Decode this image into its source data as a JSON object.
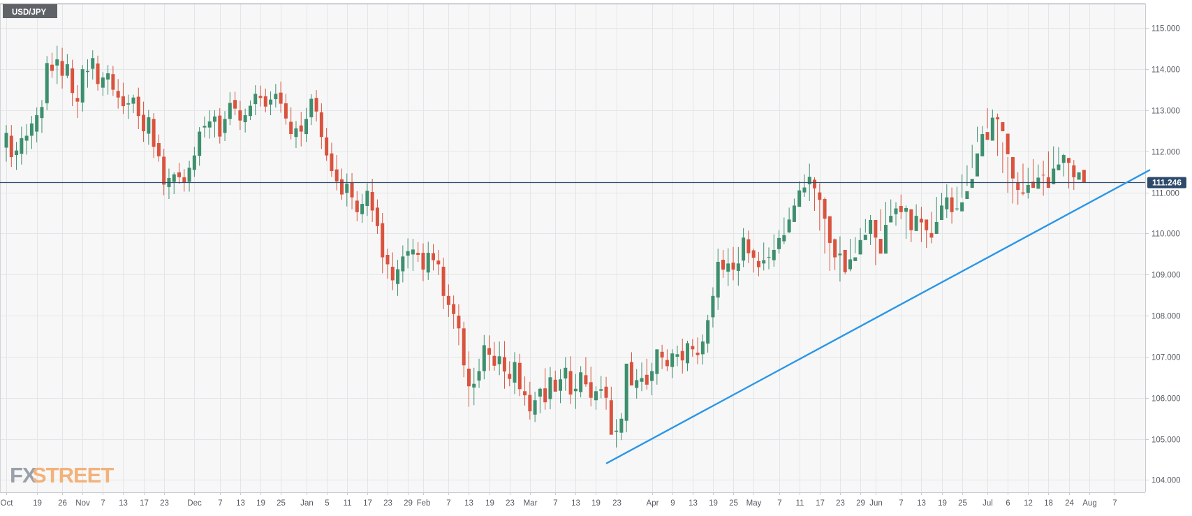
{
  "chart_data": {
    "type": "candlestick",
    "title": "USD/JPY",
    "watermark": "FXSTREET",
    "ylim": [
      103.7,
      115.6
    ],
    "y_ticks": [
      "115.000",
      "114.000",
      "113.000",
      "112.000",
      "111.000",
      "110.000",
      "109.000",
      "108.000",
      "107.000",
      "106.000",
      "105.000",
      "104.000"
    ],
    "y_tick_values": [
      115,
      114,
      113,
      112,
      111,
      110,
      109,
      108,
      107,
      106,
      105,
      104
    ],
    "x_ticks": [
      {
        "label": "Oct",
        "idx": 0
      },
      {
        "label": "19",
        "idx": 6
      },
      {
        "label": "26",
        "idx": 11
      },
      {
        "label": "Nov",
        "idx": 15
      },
      {
        "label": "7",
        "idx": 19
      },
      {
        "label": "13",
        "idx": 23
      },
      {
        "label": "17",
        "idx": 27
      },
      {
        "label": "23",
        "idx": 31
      },
      {
        "label": "Dec",
        "idx": 37
      },
      {
        "label": "7",
        "idx": 42
      },
      {
        "label": "13",
        "idx": 46
      },
      {
        "label": "19",
        "idx": 50
      },
      {
        "label": "25",
        "idx": 54
      },
      {
        "label": "Jan",
        "idx": 59
      },
      {
        "label": "5",
        "idx": 63
      },
      {
        "label": "11",
        "idx": 67
      },
      {
        "label": "17",
        "idx": 71
      },
      {
        "label": "23",
        "idx": 75
      },
      {
        "label": "29",
        "idx": 79
      },
      {
        "label": "Feb",
        "idx": 82
      },
      {
        "label": "7",
        "idx": 87
      },
      {
        "label": "13",
        "idx": 91
      },
      {
        "label": "19",
        "idx": 95
      },
      {
        "label": "23",
        "idx": 99
      },
      {
        "label": "Mar",
        "idx": 103
      },
      {
        "label": "7",
        "idx": 108
      },
      {
        "label": "13",
        "idx": 112
      },
      {
        "label": "19",
        "idx": 116
      },
      {
        "label": "23",
        "idx": 120
      },
      {
        "label": "Apr",
        "idx": 127
      },
      {
        "label": "9",
        "idx": 131
      },
      {
        "label": "13",
        "idx": 135
      },
      {
        "label": "19",
        "idx": 139
      },
      {
        "label": "25",
        "idx": 143
      },
      {
        "label": "May",
        "idx": 147
      },
      {
        "label": "7",
        "idx": 152
      },
      {
        "label": "11",
        "idx": 156
      },
      {
        "label": "17",
        "idx": 160
      },
      {
        "label": "23",
        "idx": 164
      },
      {
        "label": "29",
        "idx": 168
      },
      {
        "label": "Jun",
        "idx": 171
      },
      {
        "label": "7",
        "idx": 176
      },
      {
        "label": "13",
        "idx": 180
      },
      {
        "label": "19",
        "idx": 184
      },
      {
        "label": "25",
        "idx": 188
      },
      {
        "label": "Jul",
        "idx": 193
      },
      {
        "label": "6",
        "idx": 197
      },
      {
        "label": "12",
        "idx": 201
      },
      {
        "label": "18",
        "idx": 205
      },
      {
        "label": "24",
        "idx": 209
      },
      {
        "label": "Aug",
        "idx": 213
      },
      {
        "label": "7",
        "idx": 218
      }
    ],
    "current_price": "111.246",
    "current_value": 111.246,
    "trendline": {
      "from": {
        "idx": 118,
        "price": 104.4
      },
      "to": {
        "idx": 225,
        "price": 111.55
      }
    },
    "colors": {
      "up": "#3d8f6e",
      "down": "#d9533e",
      "price_line": "#2e4a6b",
      "trendline": "#2a96e8",
      "price_label_bg": "#2e4a6b",
      "title_bg": "#5f6368",
      "watermark_fx": "#9aa0aa",
      "watermark_street": "#f2b27a"
    },
    "closes": [
      112.45,
      111.86,
      112.02,
      112.32,
      112.38,
      112.68,
      112.88,
      113.08,
      114.15,
      113.96,
      114.24,
      113.84,
      114.12,
      113.42,
      113.21,
      114.0,
      113.96,
      114.27,
      113.64,
      113.8,
      113.9,
      113.5,
      113.31,
      113.1,
      113.17,
      113.31,
      112.86,
      112.49,
      112.83,
      112.11,
      111.88,
      111.19,
      111.35,
      111.44,
      111.37,
      111.24,
      111.6,
      111.9,
      112.48,
      112.62,
      112.73,
      112.85,
      112.36,
      112.79,
      113.18,
      113.04,
      112.75,
      112.88,
      113.11,
      113.4,
      113.3,
      113.09,
      113.26,
      113.4,
      113.16,
      112.8,
      112.42,
      112.56,
      112.48,
      112.79,
      113.28,
      112.97,
      112.35,
      111.9,
      111.52,
      111.27,
      110.95,
      111.21,
      110.88,
      110.52,
      110.72,
      111.04,
      110.56,
      110.18,
      109.42,
      109.25,
      108.86,
      109.13,
      109.44,
      109.57,
      109.61,
      109.48,
      109.12,
      109.53,
      109.35,
      109.25,
      108.48,
      108.26,
      108.04,
      107.69,
      106.79,
      106.28,
      106.34,
      106.65,
      107.28,
      107.05,
      106.78,
      107.01,
      106.64,
      106.46,
      106.87,
      106.21,
      106.06,
      105.67,
      105.94,
      106.22,
      105.89,
      106.5,
      106.15,
      106.45,
      106.73,
      106.08,
      106.22,
      106.62,
      106.33,
      106.0,
      106.16,
      106.21,
      106.0,
      105.1,
      105.2,
      105.49,
      106.83,
      106.3,
      106.43,
      106.48,
      106.32,
      106.65,
      107.18,
      106.98,
      106.77,
      107.08,
      107.06,
      106.91,
      107.33,
      107.18,
      107.04,
      107.37,
      107.89,
      108.48,
      109.31,
      109.12,
      109.27,
      109.12,
      109.27,
      109.9,
      109.52,
      109.41,
      109.18,
      109.35,
      109.43,
      109.6,
      109.89,
      109.96,
      110.34,
      110.68,
      111.05,
      111.12,
      111.38,
      111.1,
      110.82,
      110.36,
      109.77,
      109.42,
      109.51,
      109.06,
      109.37,
      109.42,
      109.84,
      109.97,
      110.33,
      109.9,
      109.51,
      110.21,
      110.43,
      110.61,
      110.52,
      110.62,
      110.08,
      110.43,
      110.27,
      110.08,
      109.9,
      110.28,
      110.68,
      110.88,
      110.52,
      110.61,
      110.76,
      111.03,
      111.33,
      111.95,
      112.42,
      112.28,
      112.82,
      112.78,
      112.49,
      111.93,
      111.34,
      111.06,
      110.97,
      111.18,
      111.11,
      111.36,
      111.42,
      111.11,
      111.58,
      111.68,
      111.91,
      111.72,
      111.37,
      111.49,
      111.25
    ],
    "opens": [
      112.09,
      112.38,
      111.91,
      111.94,
      112.26,
      112.38,
      112.48,
      112.81,
      113.17,
      114.11,
      114.09,
      114.2,
      113.84,
      114.02,
      113.3,
      113.19,
      113.93,
      114.01,
      114.14,
      113.55,
      113.75,
      113.88,
      113.47,
      113.34,
      113.14,
      113.16,
      113.33,
      112.89,
      112.43,
      112.79,
      112.2,
      111.87,
      111.13,
      111.26,
      111.49,
      111.37,
      111.26,
      111.55,
      111.89,
      112.58,
      112.58,
      112.72,
      112.87,
      112.45,
      112.79,
      113.25,
      113.0,
      112.71,
      112.86,
      113.15,
      113.35,
      113.34,
      113.14,
      113.27,
      113.43,
      113.17,
      112.72,
      112.35,
      112.63,
      112.42,
      112.83,
      113.3,
      112.95,
      112.34,
      111.95,
      111.56,
      111.32,
      110.99,
      111.24,
      110.8,
      110.47,
      110.67,
      111.01,
      110.63,
      110.25,
      109.48,
      109.19,
      108.77,
      109.08,
      109.46,
      109.49,
      109.53,
      109.53,
      109.05,
      109.52,
      109.34,
      109.19,
      108.48,
      108.28,
      108.0,
      107.69,
      106.71,
      106.25,
      106.42,
      106.65,
      107.21,
      107.02,
      106.82,
      106.99,
      106.58,
      106.37,
      106.85,
      106.16,
      106.07,
      105.59,
      106.03,
      106.23,
      105.97,
      106.44,
      106.17,
      106.47,
      106.65,
      106.16,
      106.14,
      106.55,
      106.38,
      105.94,
      106.17,
      106.27,
      105.94,
      105.17,
      105.15,
      105.44,
      106.87,
      106.24,
      106.39,
      106.56,
      106.41,
      106.58,
      107.12,
      106.92,
      106.75,
      107.0,
      107.14,
      106.84,
      107.26,
      107.1,
      107.06,
      107.32,
      107.96,
      108.44,
      109.36,
      109.07,
      109.29,
      109.09,
      109.34,
      109.86,
      109.59,
      109.33,
      109.27,
      109.42,
      109.35,
      109.62,
      109.81,
      110.03,
      110.28,
      110.65,
      111.0,
      111.2,
      111.31,
      111.0,
      110.84,
      110.42,
      109.86,
      109.47,
      109.6,
      109.13,
      109.33,
      109.49,
      109.84,
      109.99,
      110.33,
      109.87,
      109.51,
      110.27,
      110.47,
      110.67,
      110.53,
      110.59,
      110.06,
      110.36,
      110.34,
      110.01,
      109.99,
      110.33,
      110.59,
      110.88,
      110.59,
      110.54,
      110.84,
      111.11,
      111.39,
      111.88,
      112.47,
      112.26,
      112.83,
      112.71,
      112.43,
      111.86,
      111.25,
      111.0,
      110.99,
      111.26,
      111.09,
      111.43,
      111.37,
      111.2,
      111.54,
      111.72,
      111.84,
      111.66,
      111.31,
      111.55
    ],
    "highs": [
      112.64,
      112.64,
      112.23,
      112.6,
      112.66,
      112.86,
      113.07,
      113.25,
      114.32,
      114.4,
      114.57,
      114.52,
      114.37,
      114.23,
      113.61,
      114.1,
      114.24,
      114.46,
      114.33,
      113.93,
      114.1,
      114.08,
      113.76,
      113.67,
      113.38,
      113.38,
      113.55,
      113.21,
      113.01,
      112.93,
      112.41,
      112.06,
      111.58,
      111.49,
      111.72,
      111.57,
      111.77,
      112.11,
      112.59,
      112.85,
      113.0,
      113.0,
      113.05,
      112.98,
      113.44,
      113.45,
      113.23,
      113.04,
      113.24,
      113.61,
      113.6,
      113.53,
      113.46,
      113.64,
      113.7,
      113.4,
      113.07,
      112.74,
      112.96,
      113.06,
      113.39,
      113.49,
      113.17,
      112.57,
      112.21,
      111.91,
      111.58,
      111.46,
      111.47,
      111.03,
      110.96,
      111.22,
      111.33,
      110.83,
      110.5,
      109.63,
      109.54,
      109.36,
      109.71,
      109.88,
      109.87,
      109.79,
      109.76,
      109.8,
      109.74,
      109.6,
      109.41,
      108.76,
      108.49,
      108.28,
      107.85,
      107.13,
      106.73,
      106.95,
      107.53,
      107.52,
      107.36,
      107.37,
      107.38,
      106.89,
      107.11,
      107.07,
      106.52,
      106.39,
      106.15,
      106.25,
      106.72,
      106.75,
      106.66,
      106.7,
      106.99,
      107.01,
      106.58,
      106.77,
      106.99,
      106.76,
      106.28,
      106.53,
      106.51,
      106.27,
      105.48,
      105.63,
      106.15,
      107.11,
      106.7,
      106.86,
      106.95,
      106.85,
      107.16,
      107.29,
      107.18,
      107.18,
      107.27,
      107.44,
      107.39,
      107.43,
      107.47,
      107.54,
      108.02,
      108.69,
      109.63,
      109.6,
      109.64,
      109.67,
      109.67,
      110.13,
      110.07,
      109.63,
      109.55,
      109.78,
      109.66,
      109.98,
      110.08,
      110.39,
      110.63,
      110.85,
      111.27,
      111.44,
      111.7,
      111.37,
      111.22,
      110.88,
      110.23,
      109.88,
      109.93,
      109.54,
      109.87,
      109.91,
      110.13,
      110.35,
      110.45,
      110.1,
      110.59,
      110.77,
      110.83,
      110.76,
      110.95,
      110.68,
      110.56,
      110.71,
      110.65,
      110.25,
      110.53,
      110.89,
      110.99,
      111.2,
      111.12,
      111.14,
      111.44,
      111.66,
      112.16,
      112.6,
      112.62,
      113.05,
      113.02,
      112.92,
      112.22,
      111.86,
      111.69,
      111.49,
      111.7,
      111.6,
      111.81,
      111.68,
      111.77,
      112.0,
      112.12,
      112.1,
      111.94,
      111.8,
      111.79
    ],
    "lows": [
      111.75,
      111.62,
      111.55,
      111.68,
      111.92,
      112.06,
      112.22,
      112.45,
      113.0,
      113.79,
      113.64,
      113.53,
      113.78,
      113.1,
      112.81,
      112.97,
      113.55,
      113.75,
      113.48,
      113.35,
      113.38,
      113.35,
      113.04,
      112.91,
      112.79,
      112.93,
      112.54,
      112.23,
      112.16,
      111.84,
      111.75,
      110.93,
      110.84,
      110.96,
      111.21,
      111.02,
      111.02,
      111.38,
      111.65,
      112.34,
      112.31,
      112.34,
      112.19,
      112.25,
      112.64,
      112.88,
      112.52,
      112.46,
      112.76,
      112.88,
      113.09,
      112.95,
      112.88,
      113.07,
      112.94,
      112.65,
      112.29,
      112.08,
      112.12,
      112.23,
      112.64,
      112.73,
      112.06,
      111.77,
      111.38,
      111.05,
      110.82,
      110.66,
      110.59,
      110.3,
      110.26,
      110.43,
      110.28,
      109.99,
      109.03,
      108.9,
      108.62,
      108.48,
      108.81,
      109.15,
      109.09,
      109.31,
      108.84,
      108.87,
      109.1,
      108.99,
      108.16,
      107.97,
      107.68,
      107.28,
      106.5,
      105.78,
      105.82,
      106.24,
      106.45,
      106.66,
      106.66,
      106.55,
      106.22,
      106.28,
      106.09,
      106.04,
      105.81,
      105.47,
      105.41,
      105.62,
      105.71,
      105.72,
      106.17,
      105.87,
      106.17,
      105.85,
      105.73,
      106.01,
      106.27,
      105.79,
      105.71,
      105.99,
      105.71,
      105.22,
      104.79,
      104.97,
      105.16,
      106.38,
      105.98,
      106.16,
      106.2,
      106.06,
      106.32,
      106.7,
      106.65,
      106.48,
      106.77,
      106.59,
      106.65,
      107.0,
      106.82,
      106.81,
      107.1,
      107.71,
      108.14,
      108.92,
      108.72,
      108.86,
      108.73,
      109.18,
      109.28,
      109.05,
      108.96,
      109.1,
      109.13,
      109.19,
      109.51,
      109.74,
      110.01,
      110.45,
      110.8,
      110.89,
      110.79,
      110.55,
      110.07,
      109.51,
      109.09,
      109.11,
      108.83,
      109.01,
      109.08,
      109.52,
      109.78,
      110.02,
      109.72,
      109.23,
      110.06,
      110.19,
      110.33,
      110.19,
      110.35,
      109.87,
      109.79,
      110.07,
      109.79,
      109.65,
      109.76,
      110.26,
      110.64,
      110.38,
      110.24,
      110.55,
      110.87,
      111.16,
      111.59,
      112.23,
      112.07,
      112.56,
      112.49,
      111.89,
      111.47,
      110.99,
      110.73,
      110.7,
      110.93,
      110.85,
      111.16,
      111.15,
      110.92,
      111.35,
      111.45,
      111.58,
      111.39,
      111.1,
      111.06
    ]
  }
}
